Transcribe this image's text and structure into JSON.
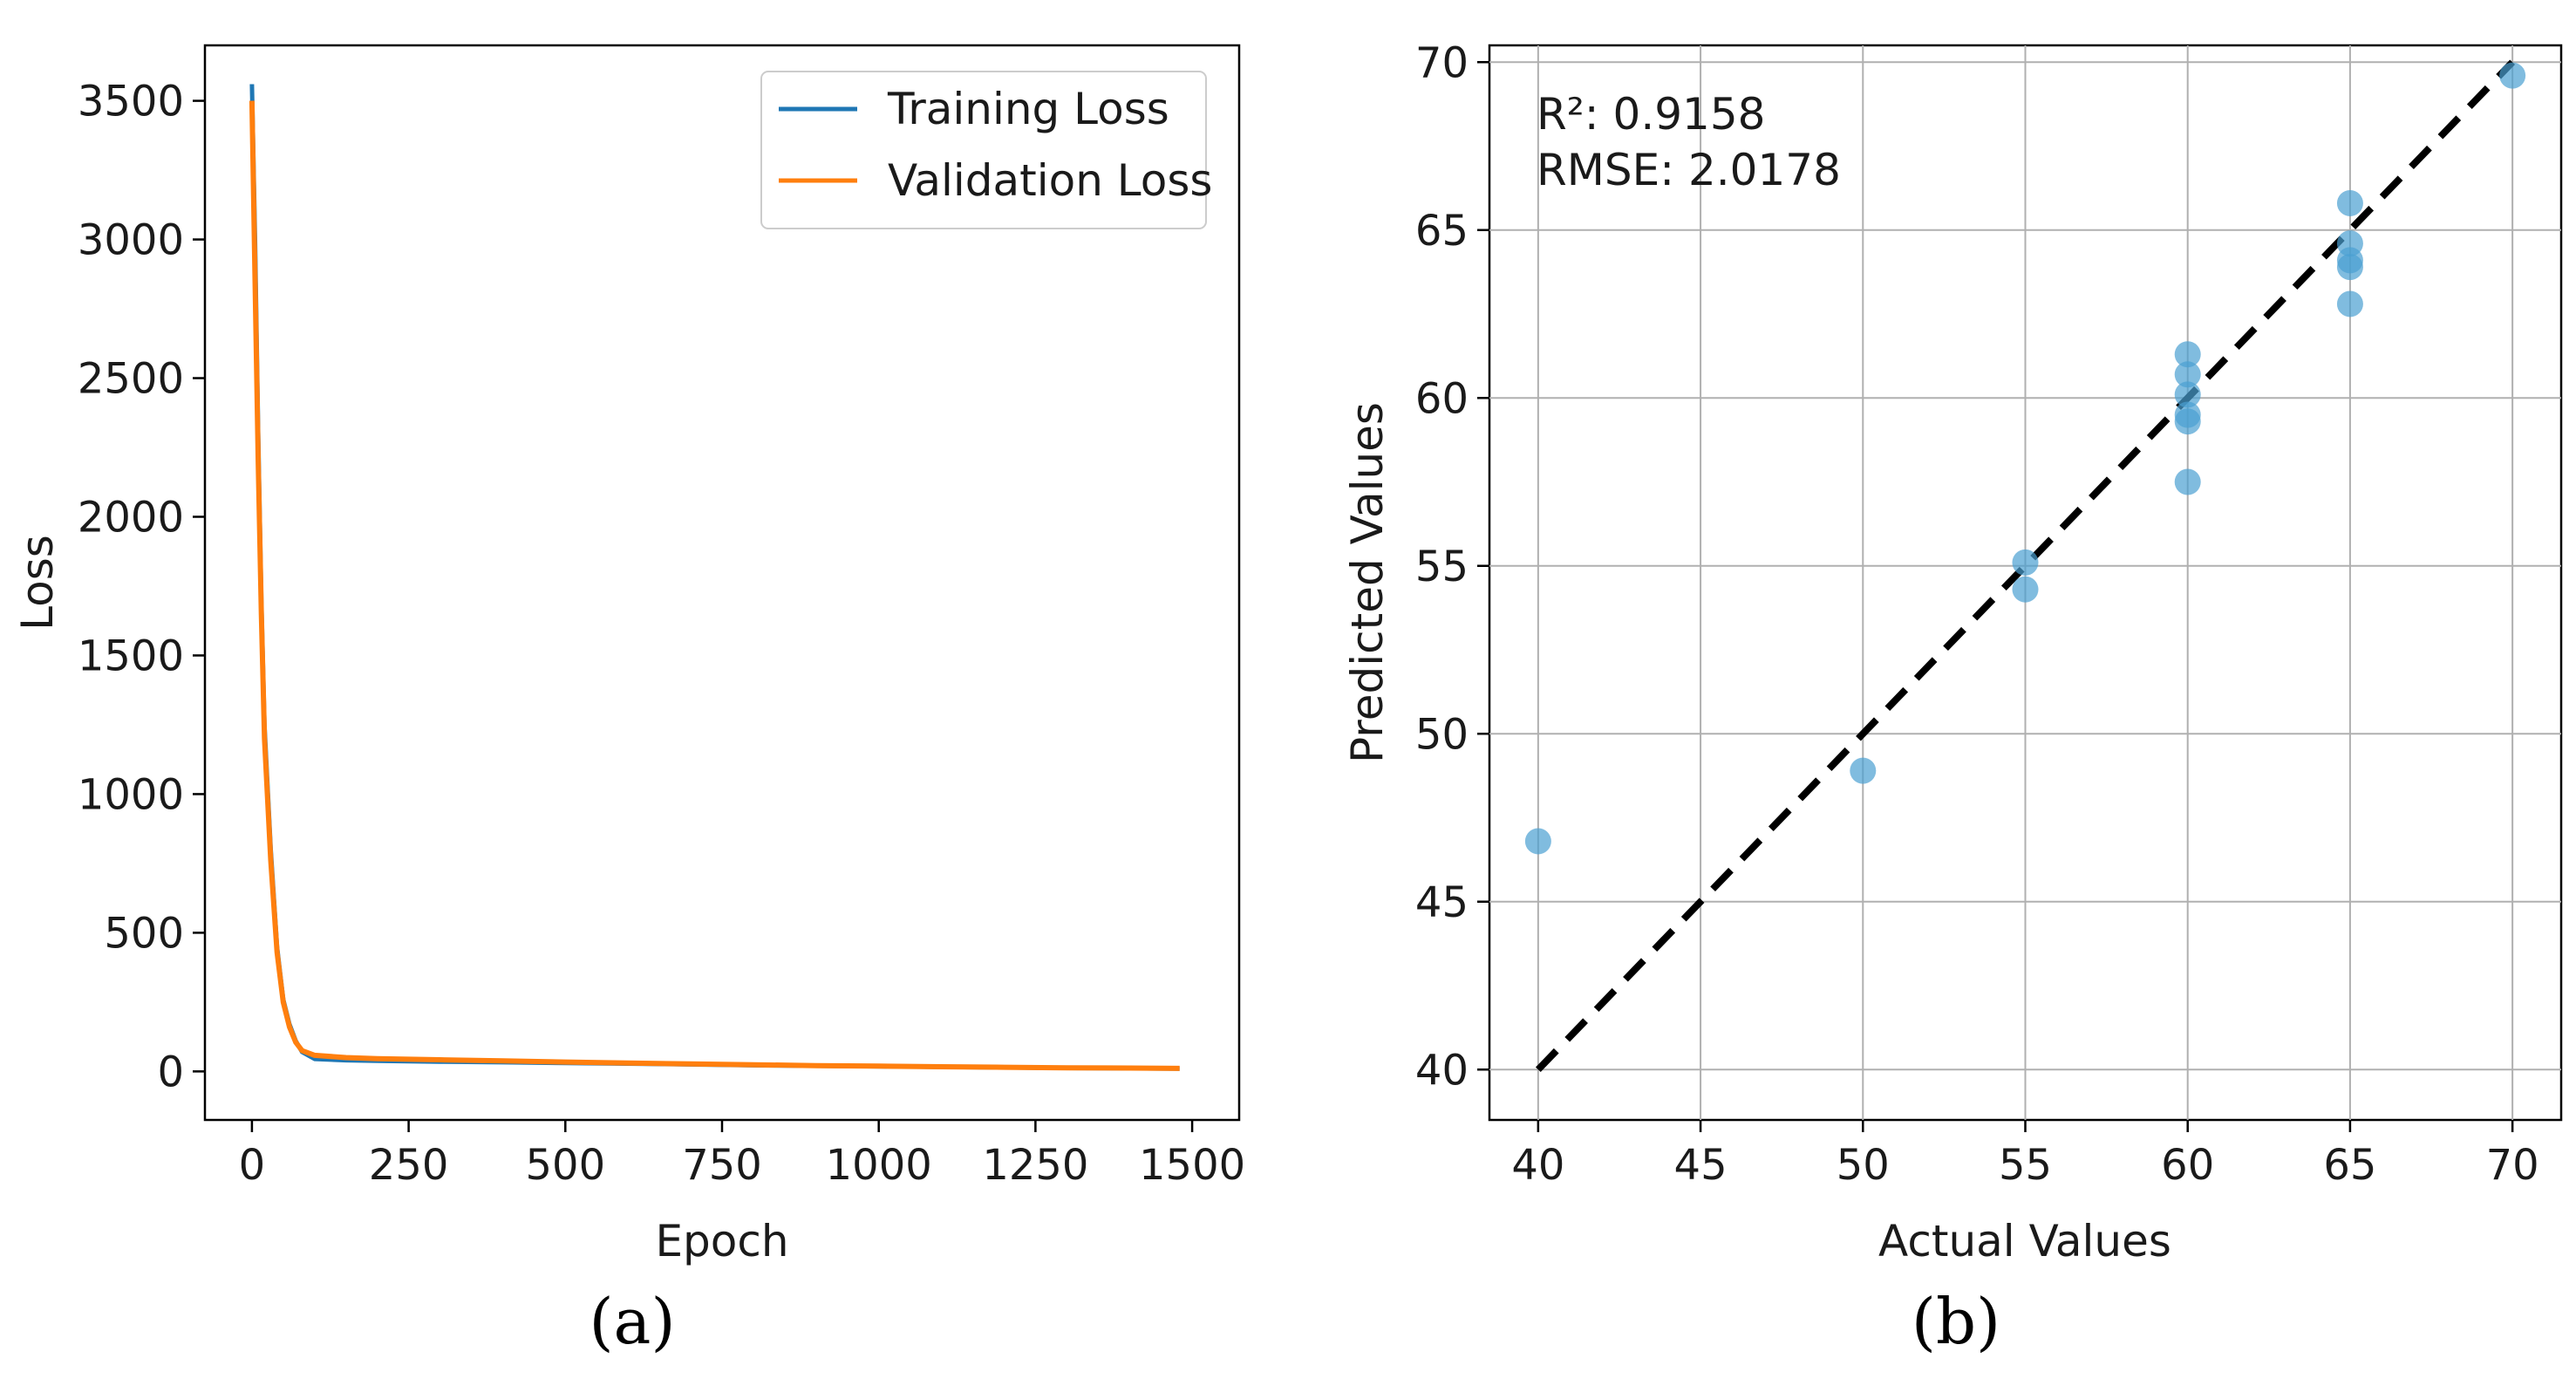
{
  "chart_data": [
    {
      "panel": "a",
      "caption": "(a)",
      "type": "line",
      "title": "",
      "xlabel": "Epoch",
      "ylabel": "Loss",
      "xlim": [
        -75,
        1575
      ],
      "ylim": [
        -175,
        3700
      ],
      "xticks": [
        0,
        250,
        500,
        750,
        1000,
        1250,
        1500
      ],
      "yticks": [
        0,
        500,
        1000,
        1500,
        2000,
        2500,
        3000,
        3500
      ],
      "grid": false,
      "legend_position": "top-right",
      "series": [
        {
          "name": "Training Loss",
          "color": "#1f77b4",
          "x": [
            0,
            5,
            10,
            15,
            20,
            30,
            40,
            50,
            60,
            70,
            80,
            100,
            150,
            200,
            300,
            400,
            500,
            600,
            700,
            800,
            900,
            1000,
            1100,
            1200,
            1300,
            1400,
            1480
          ],
          "y": [
            3560,
            3000,
            2300,
            1700,
            1250,
            800,
            450,
            260,
            170,
            110,
            70,
            45,
            40,
            38,
            35,
            33,
            30,
            28,
            25,
            22,
            20,
            18,
            16,
            14,
            12,
            11,
            10
          ]
        },
        {
          "name": "Validation Loss",
          "color": "#ff7f0e",
          "x": [
            0,
            5,
            10,
            15,
            20,
            30,
            40,
            50,
            60,
            70,
            80,
            100,
            150,
            200,
            300,
            400,
            500,
            600,
            700,
            800,
            900,
            1000,
            1100,
            1200,
            1300,
            1400,
            1480
          ],
          "y": [
            3500,
            2850,
            2200,
            1650,
            1200,
            760,
            430,
            250,
            160,
            105,
            75,
            58,
            50,
            46,
            42,
            38,
            34,
            30,
            27,
            24,
            21,
            19,
            17,
            15,
            13,
            12,
            11
          ]
        }
      ]
    },
    {
      "panel": "b",
      "caption": "(b)",
      "type": "scatter",
      "title": "",
      "xlabel": "Actual Values",
      "ylabel": "Predicted Values",
      "xlim": [
        38.5,
        71.5
      ],
      "ylim": [
        38.5,
        70.5
      ],
      "xticks": [
        40,
        45,
        50,
        55,
        60,
        65,
        70
      ],
      "yticks": [
        40,
        45,
        50,
        55,
        60,
        65,
        70
      ],
      "grid": true,
      "annotations": [
        "R²: 0.9158",
        "RMSE: 2.0178"
      ],
      "point_color": "#4a9fd1",
      "reference_line": {
        "style": "dashed",
        "color": "#000000",
        "from": [
          40,
          40
        ],
        "to": [
          70,
          70
        ]
      },
      "points": [
        [
          40,
          46.8
        ],
        [
          50,
          48.9
        ],
        [
          55,
          55.1
        ],
        [
          55,
          54.3
        ],
        [
          60,
          61.3
        ],
        [
          60,
          60.7
        ],
        [
          60,
          60.1
        ],
        [
          60,
          59.3
        ],
        [
          60,
          59.5
        ],
        [
          60,
          57.5
        ],
        [
          65,
          65.8
        ],
        [
          65,
          64.6
        ],
        [
          65,
          64.1
        ],
        [
          65,
          63.9
        ],
        [
          65,
          62.8
        ],
        [
          70,
          69.6
        ]
      ]
    }
  ]
}
